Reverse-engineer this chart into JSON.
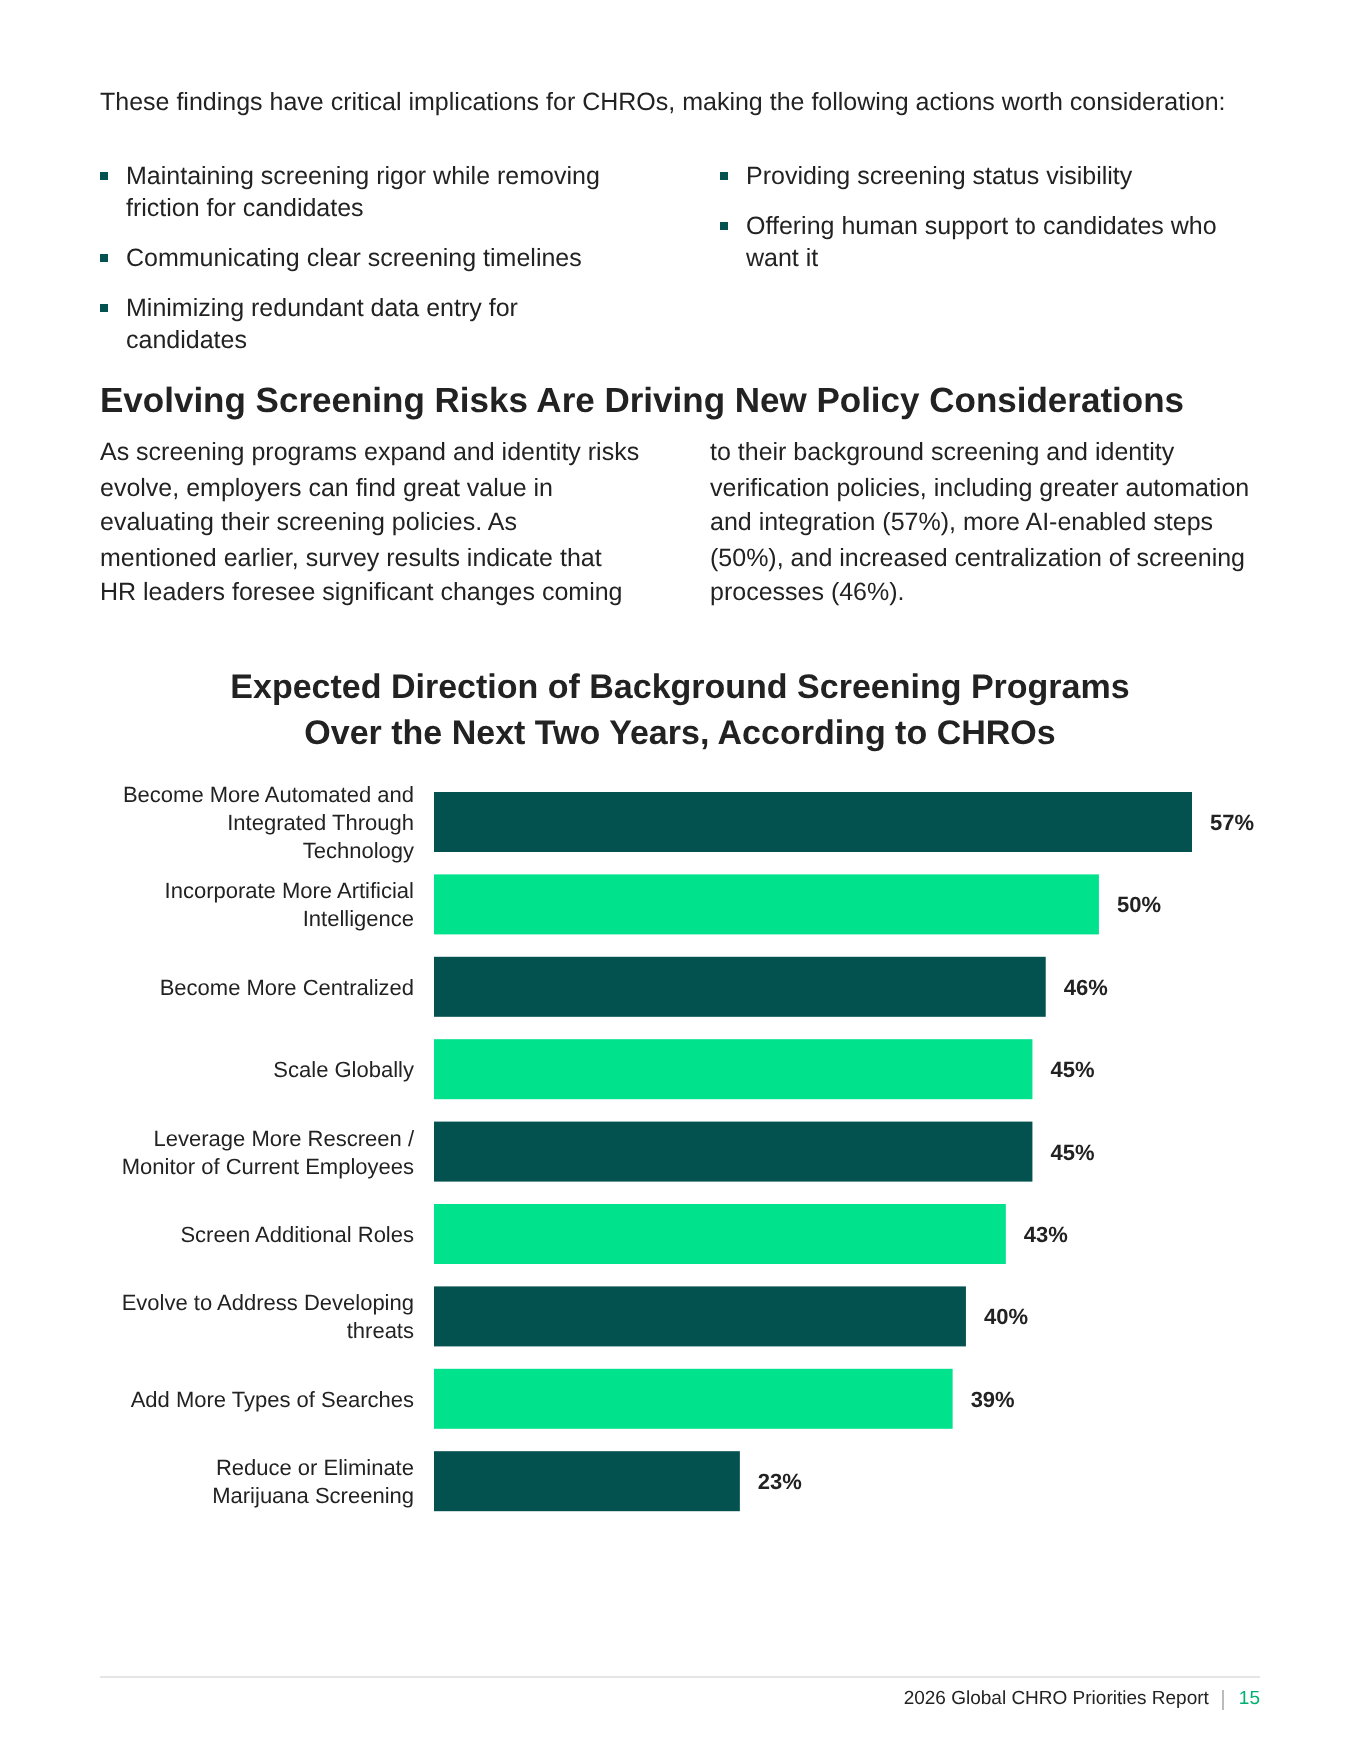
{
  "chart_data": {
    "type": "bar",
    "orientation": "horizontal",
    "title": "Expected Direction of Background Screening Programs Over the Next Two Years, According to CHROs",
    "categories": [
      "Become More Automated and Integrated Through Technology",
      "Incorporate More Artificial Intelligence",
      "Become More Centralized",
      "Scale Globally",
      "Leverage More Rescreen / Monitor of Current Employees",
      "Screen Additional Roles",
      "Evolve to Address Developing threats",
      "Add More Types of Searches",
      "Reduce or Eliminate Marijuana Screening"
    ],
    "values": [
      57,
      50,
      46,
      45,
      45,
      43,
      40,
      39,
      23
    ],
    "colors": [
      "#03524f",
      "#00e28c",
      "#03524f",
      "#00e28c",
      "#03524f",
      "#00e28c",
      "#03524f",
      "#00e28c",
      "#03524f"
    ],
    "value_labels": [
      "57%",
      "50%",
      "46%",
      "45%",
      "45%",
      "43%",
      "40%",
      "39%",
      "23%"
    ],
    "annotations": [
      "These findings have critical implications for CHROs, making the following actions worth consideration:",
      "Maintaining screening rigor while removing friction for candidates",
      "Communicating clear screening timelines",
      "Minimizing redundant data entry for candidates",
      "Providing screening status visibility",
      "Offering human support to candidates who want it",
      "Evolving Screening Risks Are Driving New Policy Considerations",
      "As screening programs expand and identity risks evolve, employers can find great value in evaluating their screening policies. As mentioned earlier, survey results indicate that HR leaders foresee significant changes coming to their background screening and identity verification policies, including greater automation and integration (57%), more AI-enabled steps (50%), and increased centralization of screening processes (46%).",
      "2026 Global CHRO Priorities Report",
      "15"
    ]
  }
}
